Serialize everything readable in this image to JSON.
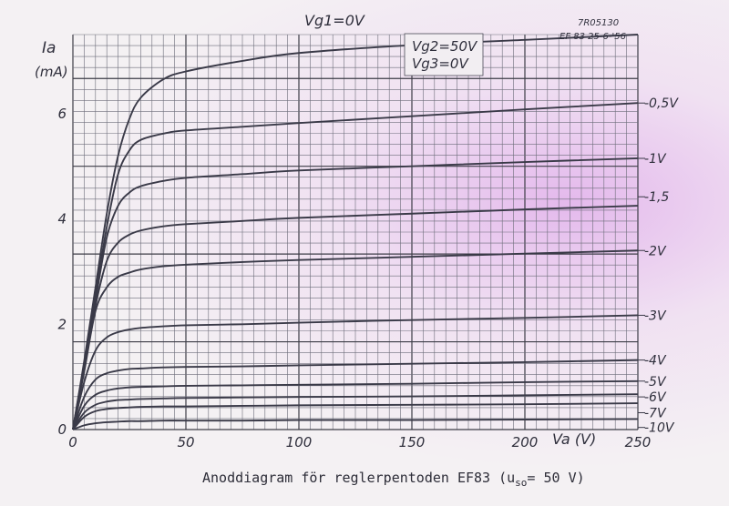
{
  "caption": {
    "text": "Anoddiagram för reglerpentoden EF83 (u",
    "subscript": "so",
    "suffix": "= 50 V)"
  },
  "stamp": {
    "code": "7R05130",
    "ref": "EF 83  25-6-'56"
  },
  "conditions": {
    "vg2": "Vg2=50V",
    "vg3": "Vg3=0V"
  },
  "chart_data": {
    "type": "line",
    "ylabel": "Ia",
    "ylabel_unit": "(mA)",
    "xlabel": "Va (V)",
    "xlim": [
      0,
      250
    ],
    "ylim": [
      0,
      7.5
    ],
    "x_ticks": [
      "0",
      "50",
      "100",
      "150",
      "200",
      "250"
    ],
    "y_ticks": [
      "0",
      "2",
      "4",
      "6"
    ],
    "grid": true,
    "x": [
      0,
      5,
      10,
      15,
      20,
      25,
      30,
      40,
      50,
      75,
      100,
      150,
      200,
      250
    ],
    "series": [
      {
        "name": "Vg1=0V",
        "values": [
          0,
          1.3,
          2.7,
          4.1,
          5.2,
          5.9,
          6.3,
          6.65,
          6.8,
          7.0,
          7.15,
          7.3,
          7.4,
          7.5
        ]
      },
      {
        "name": "-0,5V",
        "values": [
          0,
          1.25,
          2.55,
          3.85,
          4.85,
          5.3,
          5.5,
          5.62,
          5.68,
          5.75,
          5.82,
          5.95,
          6.08,
          6.2
        ]
      },
      {
        "name": "-1V",
        "values": [
          0,
          1.2,
          2.45,
          3.65,
          4.25,
          4.5,
          4.62,
          4.72,
          4.78,
          4.85,
          4.92,
          5.0,
          5.08,
          5.15
        ]
      },
      {
        "name": "-1,5",
        "values": [
          0,
          1.15,
          2.35,
          3.2,
          3.55,
          3.7,
          3.78,
          3.86,
          3.9,
          3.96,
          4.02,
          4.1,
          4.18,
          4.25
        ]
      },
      {
        "name": "-2V",
        "values": [
          0,
          1.1,
          2.25,
          2.7,
          2.9,
          2.98,
          3.04,
          3.1,
          3.13,
          3.18,
          3.22,
          3.28,
          3.34,
          3.4
        ]
      },
      {
        "name": "-3V",
        "values": [
          0,
          0.9,
          1.5,
          1.75,
          1.85,
          1.9,
          1.93,
          1.96,
          1.98,
          2.0,
          2.03,
          2.08,
          2.12,
          2.17
        ]
      },
      {
        "name": "-4V",
        "values": [
          0,
          0.62,
          0.95,
          1.07,
          1.12,
          1.15,
          1.16,
          1.18,
          1.19,
          1.2,
          1.22,
          1.25,
          1.28,
          1.32
        ]
      },
      {
        "name": "-5V",
        "values": [
          0,
          0.45,
          0.66,
          0.74,
          0.78,
          0.8,
          0.81,
          0.82,
          0.83,
          0.84,
          0.85,
          0.87,
          0.9,
          0.92
        ]
      },
      {
        "name": "-6V",
        "values": [
          0,
          0.32,
          0.47,
          0.53,
          0.56,
          0.57,
          0.58,
          0.59,
          0.6,
          0.61,
          0.62,
          0.63,
          0.65,
          0.67
        ]
      },
      {
        "name": "-7V",
        "values": [
          0,
          0.24,
          0.35,
          0.39,
          0.41,
          0.42,
          0.43,
          0.44,
          0.44,
          0.45,
          0.46,
          0.47,
          0.48,
          0.5
        ]
      },
      {
        "name": "-10V",
        "values": [
          0,
          0.08,
          0.12,
          0.14,
          0.15,
          0.16,
          0.16,
          0.17,
          0.17,
          0.17,
          0.18,
          0.18,
          0.19,
          0.2
        ]
      }
    ]
  }
}
